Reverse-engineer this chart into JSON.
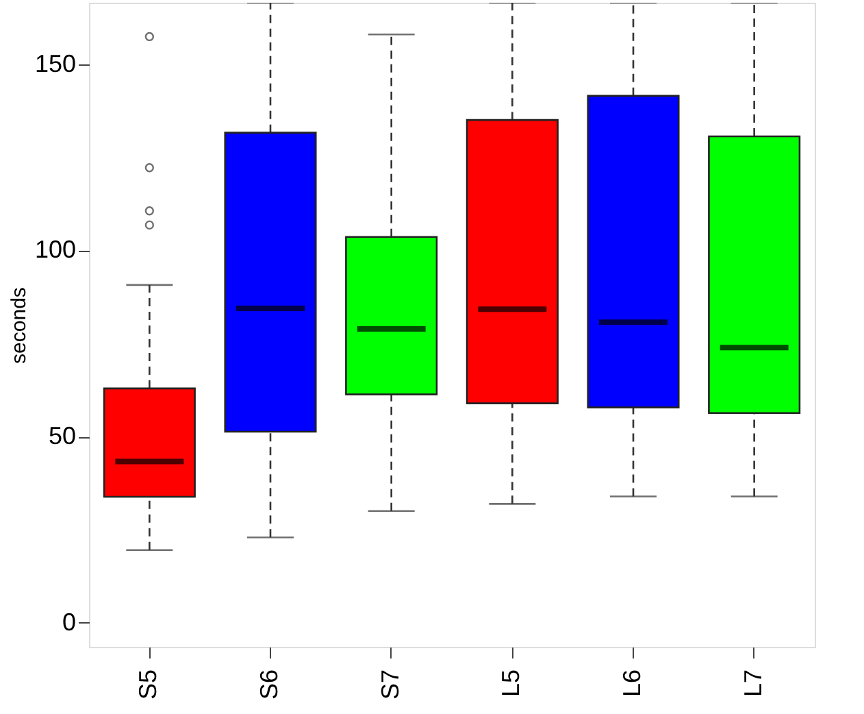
{
  "chart_data": {
    "type": "box",
    "ylabel": "seconds",
    "categories": [
      "S5",
      "S6",
      "S7",
      "L5",
      "L6",
      "L7"
    ],
    "colors": [
      "#ff0000",
      "#0000ff",
      "#00ff00",
      "#ff0000",
      "#0000ff",
      "#00ff00"
    ],
    "boxes": [
      {
        "low": 19.5,
        "q1": 33.8,
        "median": 43.3,
        "q3": 62.9,
        "high": 90.7,
        "outliers": [
          106.8,
          110.6,
          122.2,
          157.4
        ]
      },
      {
        "low": 22.9,
        "q1": 51.3,
        "median": 84.4,
        "q3": 131.6,
        "high": 166.5
      },
      {
        "low": 30.0,
        "q1": 61.3,
        "median": 78.9,
        "q3": 103.6,
        "high": 158.0
      },
      {
        "low": 31.9,
        "q1": 58.9,
        "median": 84.2,
        "q3": 135.0,
        "high": 166.5
      },
      {
        "low": 33.9,
        "q1": 57.8,
        "median": 80.7,
        "q3": 141.5,
        "high": 166.5
      },
      {
        "low": 33.9,
        "q1": 56.3,
        "median": 73.9,
        "q3": 130.6,
        "high": 166.5
      }
    ],
    "ylim": [
      -6.5,
      166.5
    ],
    "yticks": [
      0,
      50,
      100,
      150
    ],
    "grid": false,
    "legend": false
  }
}
